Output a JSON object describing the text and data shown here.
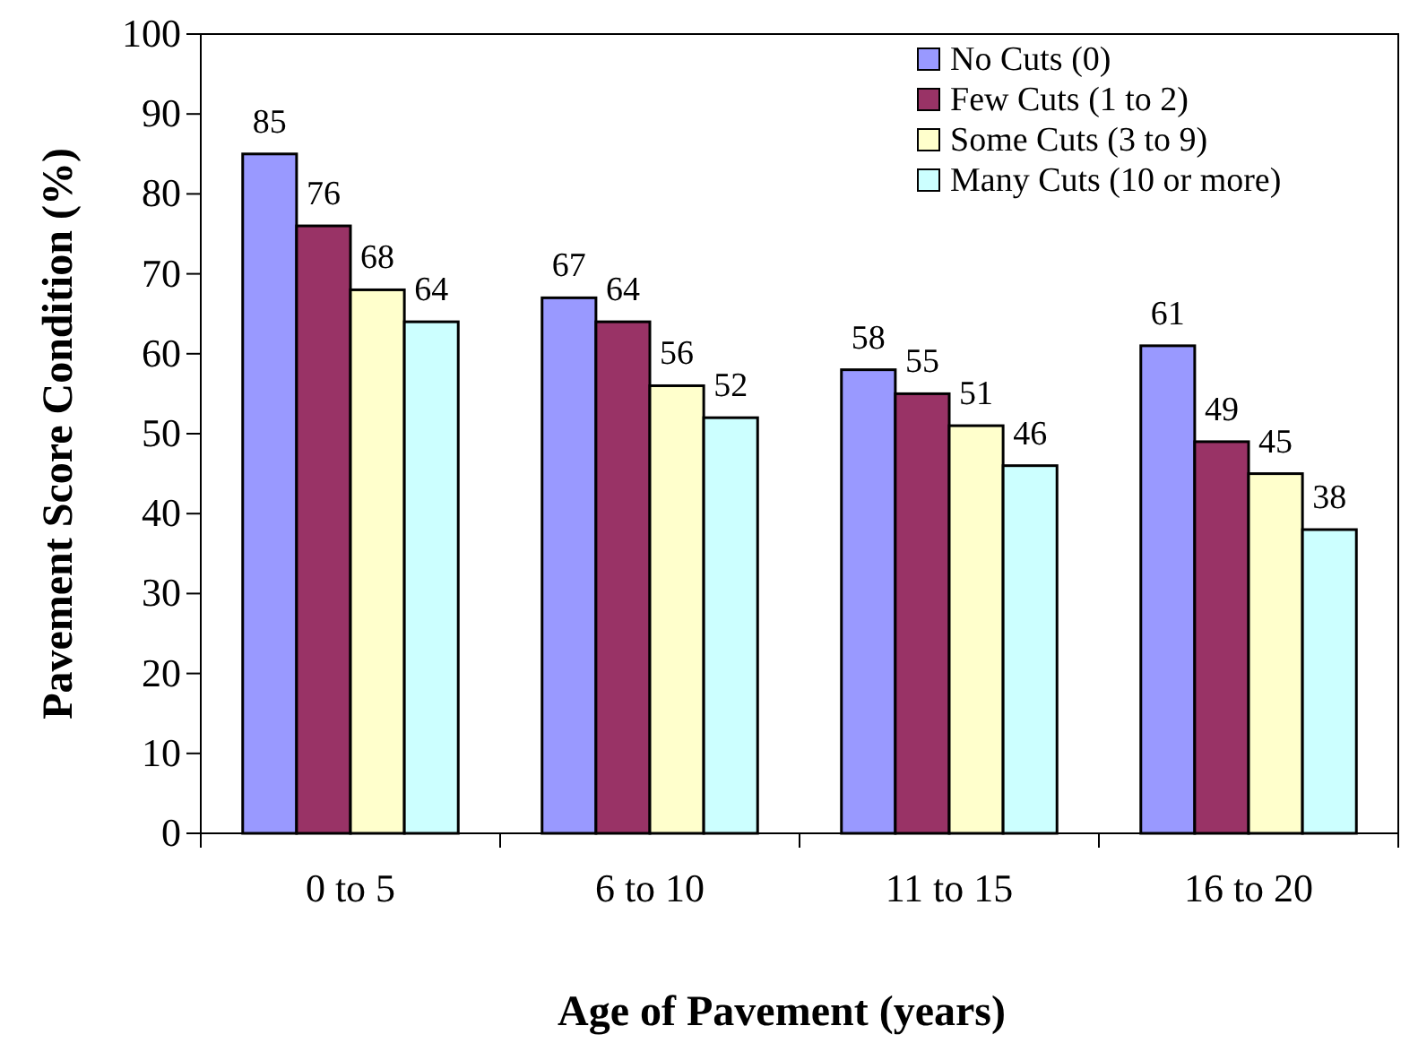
{
  "chart_data": {
    "type": "bar",
    "xlabel": "Age of Pavement (years)",
    "ylabel": "Pavement Score Condition (%)",
    "categories": [
      "0 to 5",
      "6 to 10",
      "11 to 15",
      "16 to 20"
    ],
    "series": [
      {
        "name": "No Cuts (0)",
        "color": "#9999ff",
        "values": [
          85,
          67,
          58,
          61
        ]
      },
      {
        "name": "Few Cuts (1 to 2)",
        "color": "#993366",
        "values": [
          76,
          64,
          55,
          49
        ]
      },
      {
        "name": "Some Cuts (3 to 9)",
        "color": "#ffffcc",
        "values": [
          68,
          56,
          51,
          45
        ]
      },
      {
        "name": "Many Cuts (10 or more)",
        "color": "#ccffff",
        "values": [
          64,
          52,
          46,
          38
        ]
      }
    ],
    "ylim": [
      0,
      100
    ],
    "yticks": [
      0,
      10,
      20,
      30,
      40,
      50,
      60,
      70,
      80,
      90,
      100
    ],
    "data_labels": true,
    "legend": "top right",
    "grid": false
  }
}
